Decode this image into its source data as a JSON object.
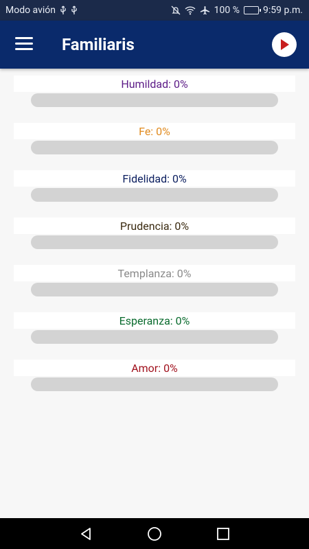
{
  "status_bar": {
    "left_text": "Modo avión",
    "battery_text": "100 %",
    "time": "9:59 p.m."
  },
  "app_bar": {
    "title": "Familiaris"
  },
  "virtues": [
    {
      "label": "Humildad: 0%",
      "color": "#5b1a86",
      "progress": 0
    },
    {
      "label": "Fe: 0%",
      "color": "#e08a1e",
      "progress": 0
    },
    {
      "label": "Fidelidad: 0%",
      "color": "#0d2060",
      "progress": 0
    },
    {
      "label": "Prudencia: 0%",
      "color": "#3a2a10",
      "progress": 0
    },
    {
      "label": "Templanza: 0%",
      "color": "#8a8a8a",
      "progress": 0
    },
    {
      "label": "Esperanza: 0%",
      "color": "#0a6b2e",
      "progress": 0
    },
    {
      "label": "Amor: 0%",
      "color": "#a0101c",
      "progress": 0
    }
  ],
  "colors": {
    "status_bar_bg": "#1b2a4a",
    "app_bar_bg": "#0a2a6b",
    "play_icon": "#c81e1e",
    "track": "#d3d3d3",
    "background": "#f7f7f7"
  },
  "icons": {
    "menu": "hamburger-menu-icon",
    "play": "play-icon",
    "nav_back": "triangle-back-icon",
    "nav_home": "circle-home-icon",
    "nav_recents": "square-recents-icon"
  }
}
